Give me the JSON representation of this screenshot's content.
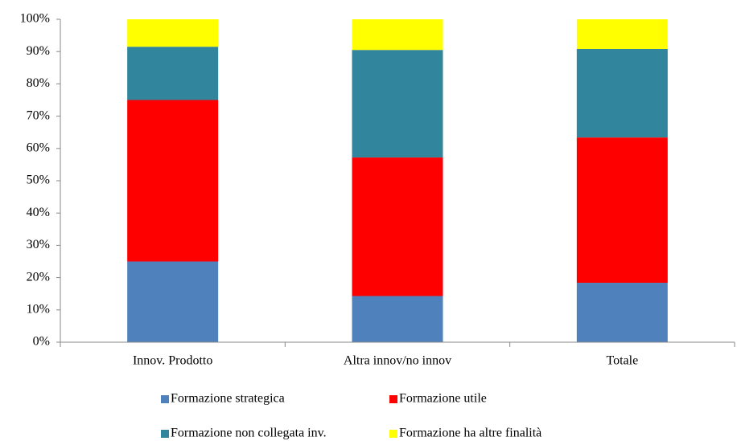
{
  "chart_data": {
    "type": "stacked_bar",
    "categories": [
      "Innov. Prodotto",
      "Altra innov/no innov",
      "Totale"
    ],
    "series": [
      {
        "name": "Formazione strategica",
        "color": "#4f81bd",
        "values": [
          25,
          14.3,
          18.4
        ]
      },
      {
        "name": "Formazione utile",
        "color": "#ff0000",
        "values": [
          50,
          42.9,
          45
        ]
      },
      {
        "name": "Formazione non collegata inv.",
        "color": "#31859c",
        "values": [
          16.5,
          33.3,
          27.4
        ]
      },
      {
        "name": "Formazione ha altre finalità",
        "color": "#ffff00",
        "values": [
          8.5,
          9.5,
          9.2
        ]
      }
    ],
    "ylim": [
      0,
      100
    ],
    "yticks": [
      {
        "value": 0,
        "label": "0%"
      },
      {
        "value": 10,
        "label": "10%"
      },
      {
        "value": 20,
        "label": "20%"
      },
      {
        "value": 30,
        "label": "30%"
      },
      {
        "value": 40,
        "label": "40%"
      },
      {
        "value": 50,
        "label": "50%"
      },
      {
        "value": 60,
        "label": "60%"
      },
      {
        "value": 70,
        "label": "70%"
      },
      {
        "value": 80,
        "label": "80%"
      },
      {
        "value": 90,
        "label": "90%"
      },
      {
        "value": 100,
        "label": "100%"
      }
    ],
    "legend": "bottom"
  }
}
